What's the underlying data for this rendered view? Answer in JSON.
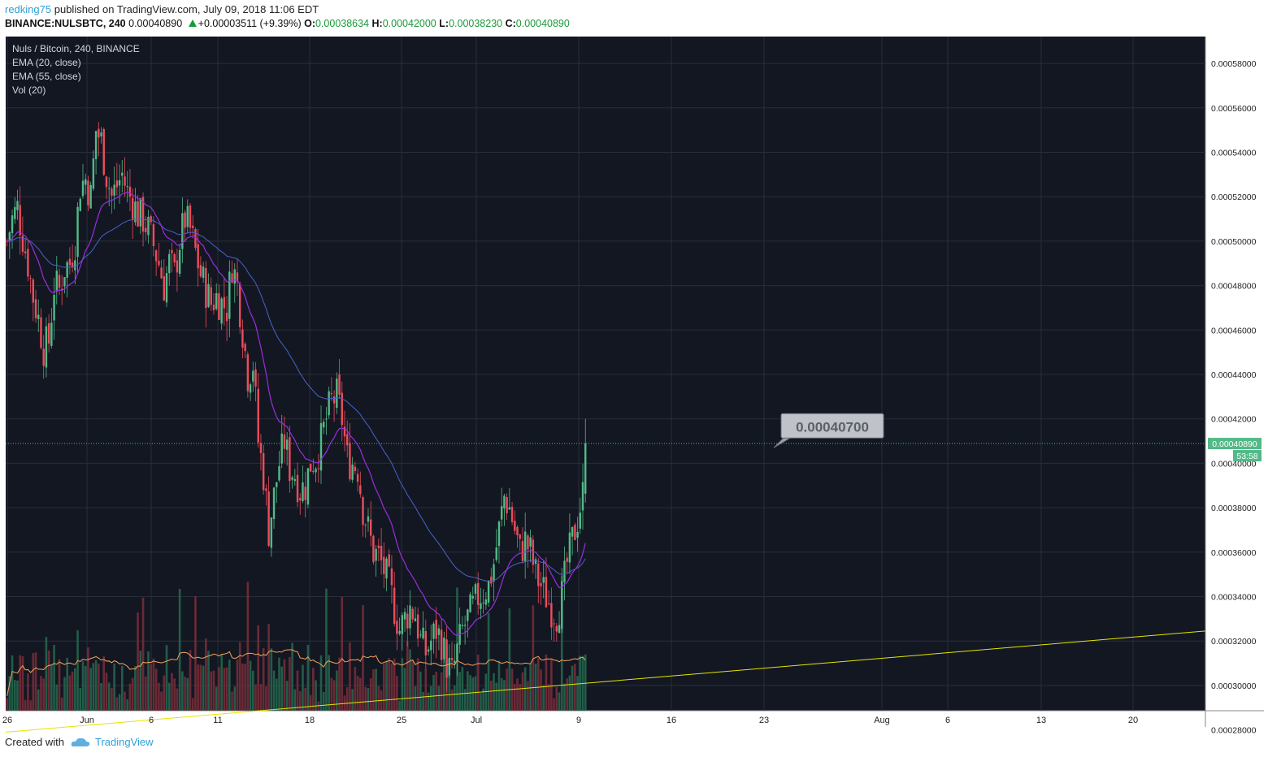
{
  "header": {
    "author": "redking75",
    "published_text": "published on TradingView.com, July 09, 2018 11:06 EDT",
    "symbol": "BINANCE:NULSBTC, 240",
    "last_price": "0.00040890",
    "change": "+0.00003511 (+9.39%)",
    "o_label": "O:",
    "o_value": "0.00038634",
    "h_label": "H:",
    "h_value": "0.00042000",
    "l_label": "L:",
    "l_value": "0.00038230",
    "c_label": "C:",
    "c_value": "0.00040890"
  },
  "legend": {
    "title": "Nuls / Bitcoin, 240, BINANCE",
    "ema20": "EMA (20, close)",
    "ema55": "EMA (55, close)",
    "vol": "Vol (20)"
  },
  "footer": {
    "created_with": "Created with",
    "brand": "TradingView"
  },
  "colors": {
    "background": "#131722",
    "grid": "#2a2e39",
    "up": "#53b987",
    "down": "#eb4d5c",
    "ema20": "#9b2de0",
    "ema55": "#4a63c7",
    "vol_ma": "#f7a35c",
    "trendline": "#e6e600",
    "price_line": "#53b987"
  },
  "chart_data": {
    "type": "candlestick",
    "title": "Nuls / Bitcoin, 240, BINANCE",
    "y_ticks": [
      "0.00058000",
      "0.00056000",
      "0.00054000",
      "0.00052000",
      "0.00050000",
      "0.00048000",
      "0.00046000",
      "0.00044000",
      "0.00042000",
      "0.00040000",
      "0.00038000",
      "0.00036000",
      "0.00034000",
      "0.00032000",
      "0.00030000",
      "0.00028000"
    ],
    "x_ticks": [
      "26",
      "Jun",
      "6",
      "11",
      "18",
      "25",
      "Jul",
      "9",
      "16",
      "23",
      "Aug",
      "6",
      "13",
      "20"
    ],
    "ylim": [
      0.000278,
      0.000582
    ],
    "last_price_label": "0.00040890",
    "countdown_label": "53:58",
    "callout_label": "0.00040700",
    "price_anchors": [
      [
        0,
        0.0005
      ],
      [
        2,
        0.00051
      ],
      [
        4,
        0.000515
      ],
      [
        6,
        0.000502
      ],
      [
        8,
        0.00049
      ],
      [
        10,
        0.000475
      ],
      [
        12,
        0.000465
      ],
      [
        14,
        0.000452
      ],
      [
        16,
        0.000455
      ],
      [
        18,
        0.00048
      ],
      [
        20,
        0.000478
      ],
      [
        22,
        0.000488
      ],
      [
        24,
        0.00049
      ],
      [
        26,
        0.0005
      ],
      [
        28,
        0.000525
      ],
      [
        30,
        0.000528
      ],
      [
        32,
        0.00052
      ],
      [
        34,
        0.00055
      ],
      [
        36,
        0.000545
      ],
      [
        38,
        0.00053
      ],
      [
        40,
        0.00052
      ],
      [
        42,
        0.000525
      ],
      [
        44,
        0.00053
      ],
      [
        46,
        0.000522
      ],
      [
        48,
        0.000518
      ],
      [
        50,
        0.000512
      ],
      [
        52,
        0.00051
      ],
      [
        54,
        0.000505
      ],
      [
        56,
        0.000498
      ],
      [
        58,
        0.00049
      ],
      [
        60,
        0.00048
      ],
      [
        62,
        0.00049
      ],
      [
        64,
        0.000485
      ],
      [
        66,
        0.0005
      ],
      [
        68,
        0.00051
      ],
      [
        70,
        0.000505
      ],
      [
        72,
        0.000495
      ],
      [
        74,
        0.000485
      ],
      [
        76,
        0.000478
      ],
      [
        78,
        0.000472
      ],
      [
        80,
        0.000475
      ],
      [
        82,
        0.000472
      ],
      [
        84,
        0.00047
      ],
      [
        86,
        0.00049
      ],
      [
        88,
        0.00048
      ],
      [
        90,
        0.00046
      ],
      [
        92,
        0.00044
      ],
      [
        94,
        0.000445
      ],
      [
        96,
        0.00041
      ],
      [
        98,
        0.000395
      ],
      [
        100,
        0.00037
      ],
      [
        102,
        0.000385
      ],
      [
        104,
        0.0004
      ],
      [
        106,
        0.00041
      ],
      [
        108,
        0.000398
      ],
      [
        110,
        0.000395
      ],
      [
        112,
        0.000388
      ],
      [
        114,
        0.00039
      ],
      [
        116,
        0.0004
      ],
      [
        118,
        0.000402
      ],
      [
        120,
        0.00041
      ],
      [
        122,
        0.00042
      ],
      [
        124,
        0.000428
      ],
      [
        126,
        0.00043
      ],
      [
        128,
        0.00042
      ],
      [
        130,
        0.000402
      ],
      [
        132,
        0.0004
      ],
      [
        134,
        0.000398
      ],
      [
        136,
        0.00038
      ],
      [
        138,
        0.00037
      ],
      [
        140,
        0.00036
      ],
      [
        142,
        0.000358
      ],
      [
        144,
        0.000352
      ],
      [
        146,
        0.000345
      ],
      [
        148,
        0.000335
      ],
      [
        150,
        0.000325
      ],
      [
        152,
        0.00033
      ],
      [
        154,
        0.000335
      ],
      [
        156,
        0.000332
      ],
      [
        158,
        0.00032
      ],
      [
        160,
        0.000315
      ],
      [
        162,
        0.00032
      ],
      [
        164,
        0.000325
      ],
      [
        166,
        0.00032
      ],
      [
        168,
        0.00031
      ],
      [
        170,
        0.000305
      ],
      [
        172,
        0.000315
      ],
      [
        174,
        0.000325
      ],
      [
        176,
        0.00033
      ],
      [
        178,
        0.000335
      ],
      [
        180,
        0.00034
      ],
      [
        182,
        0.000342
      ],
      [
        184,
        0.000345
      ],
      [
        186,
        0.000355
      ],
      [
        188,
        0.00037
      ],
      [
        190,
        0.000385
      ],
      [
        192,
        0.00038
      ],
      [
        194,
        0.00037
      ],
      [
        196,
        0.00036
      ],
      [
        198,
        0.000365
      ],
      [
        200,
        0.00036
      ],
      [
        202,
        0.00035
      ],
      [
        204,
        0.000345
      ],
      [
        206,
        0.00034
      ],
      [
        208,
        0.000335
      ],
      [
        210,
        0.000332
      ],
      [
        212,
        0.00034
      ],
      [
        214,
        0.000355
      ],
      [
        216,
        0.000365
      ],
      [
        218,
        0.000375
      ],
      [
        220,
        0.000386
      ],
      [
        221,
        0.000409
      ]
    ],
    "final_candle": {
      "o": 0.00038634,
      "h": 0.00042,
      "l": 0.0003823,
      "c": 0.0004089
    },
    "trendline": {
      "start": [
        "26 May",
        0.000279
      ],
      "end": [
        "Aug 23",
        0.0003245
      ]
    },
    "series": [
      {
        "name": "EMA (20, close)",
        "type": "line"
      },
      {
        "name": "EMA (55, close)",
        "type": "line"
      },
      {
        "name": "Vol (20)",
        "type": "bar"
      }
    ]
  }
}
